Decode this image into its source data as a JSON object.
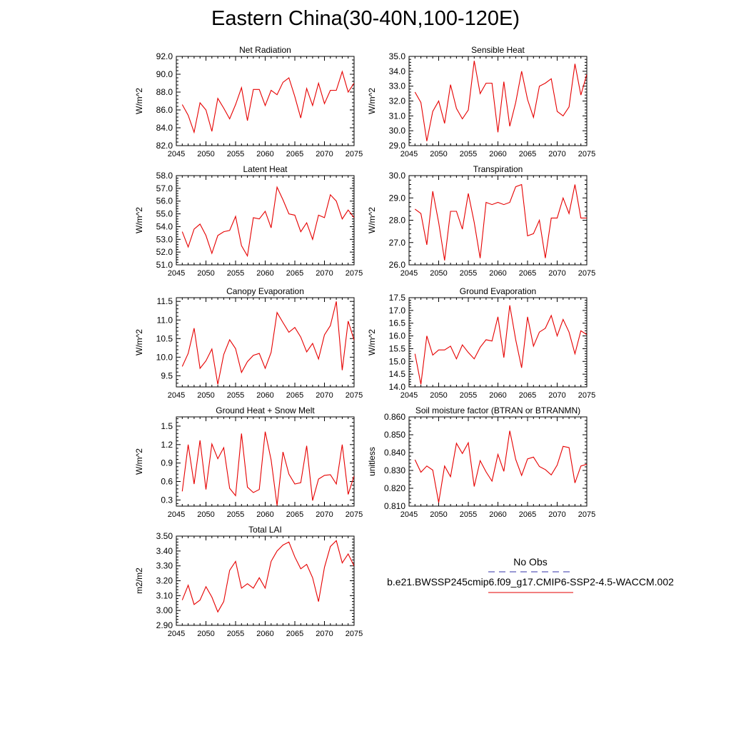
{
  "title": "Eastern China(30-40N,100-120E)",
  "colors": {
    "model_line": "#e60000",
    "obs_line": "#3333aa",
    "axis": "#000000"
  },
  "legend": {
    "obs_label": "No Obs",
    "model_label": "b.e21.BWSSP245cmip6.f09_g17.CMIP6-SSP2-4.5-WACCM.002"
  },
  "chart_data": [
    {
      "type": "line",
      "title": "Net Radiation",
      "ylabel": "W/m^2",
      "xlim": [
        2045,
        2075
      ],
      "ylim": [
        82.0,
        92.0
      ],
      "xticks": [
        2045,
        2050,
        2055,
        2060,
        2065,
        2070,
        2075
      ],
      "yticks": [
        "82.0",
        "84.0",
        "86.0",
        "88.0",
        "90.0",
        "92.0"
      ],
      "x": [
        2046,
        2047,
        2048,
        2049,
        2050,
        2051,
        2052,
        2053,
        2054,
        2055,
        2056,
        2057,
        2058,
        2059,
        2060,
        2061,
        2062,
        2063,
        2064,
        2065,
        2066,
        2067,
        2068,
        2069,
        2070,
        2071,
        2072,
        2073,
        2074,
        2075
      ],
      "values": [
        86.6,
        85.4,
        83.5,
        86.8,
        86.0,
        83.6,
        87.3,
        86.2,
        85.0,
        86.6,
        88.5,
        84.8,
        88.3,
        88.3,
        86.5,
        88.2,
        87.7,
        89.1,
        89.6,
        87.5,
        85.1,
        88.4,
        86.5,
        89.0,
        86.7,
        88.2,
        88.2,
        90.3,
        88.0,
        89.0
      ]
    },
    {
      "type": "line",
      "title": "Sensible Heat",
      "ylabel": "W/m^2",
      "xlim": [
        2045,
        2075
      ],
      "ylim": [
        29.0,
        35.0
      ],
      "xticks": [
        2045,
        2050,
        2055,
        2060,
        2065,
        2070,
        2075
      ],
      "yticks": [
        "29.0",
        "30.0",
        "31.0",
        "32.0",
        "33.0",
        "34.0",
        "35.0"
      ],
      "x": [
        2046,
        2047,
        2048,
        2049,
        2050,
        2051,
        2052,
        2053,
        2054,
        2055,
        2056,
        2057,
        2058,
        2059,
        2060,
        2061,
        2062,
        2063,
        2064,
        2065,
        2066,
        2067,
        2068,
        2069,
        2070,
        2071,
        2072,
        2073,
        2074,
        2075
      ],
      "values": [
        32.6,
        31.9,
        29.3,
        31.3,
        32.0,
        30.5,
        33.1,
        31.5,
        30.8,
        31.4,
        34.7,
        32.5,
        33.2,
        33.2,
        29.9,
        33.3,
        30.3,
        31.9,
        34.0,
        32.1,
        30.9,
        33.0,
        33.2,
        33.5,
        31.3,
        31.0,
        31.6,
        34.5,
        32.4,
        33.8
      ]
    },
    {
      "type": "line",
      "title": "Latent Heat",
      "ylabel": "W/m^2",
      "xlim": [
        2045,
        2075
      ],
      "ylim": [
        51.0,
        58.0
      ],
      "xticks": [
        2045,
        2050,
        2055,
        2060,
        2065,
        2070,
        2075
      ],
      "yticks": [
        "51.0",
        "52.0",
        "53.0",
        "54.0",
        "55.0",
        "56.0",
        "57.0",
        "58.0"
      ],
      "x": [
        2046,
        2047,
        2048,
        2049,
        2050,
        2051,
        2052,
        2053,
        2054,
        2055,
        2056,
        2057,
        2058,
        2059,
        2060,
        2061,
        2062,
        2063,
        2064,
        2065,
        2066,
        2067,
        2068,
        2069,
        2070,
        2071,
        2072,
        2073,
        2074,
        2075
      ],
      "values": [
        53.6,
        52.4,
        53.8,
        54.2,
        53.3,
        51.9,
        53.3,
        53.6,
        53.7,
        54.8,
        52.5,
        51.7,
        54.7,
        54.6,
        55.2,
        53.9,
        57.1,
        56.1,
        55.0,
        54.9,
        53.6,
        54.3,
        53.0,
        54.9,
        54.7,
        56.5,
        56.0,
        54.6,
        55.3,
        54.7
      ]
    },
    {
      "type": "line",
      "title": "Transpiration",
      "ylabel": "W/m^2",
      "xlim": [
        2045,
        2075
      ],
      "ylim": [
        26.0,
        30.0
      ],
      "xticks": [
        2045,
        2050,
        2055,
        2060,
        2065,
        2070,
        2075
      ],
      "yticks": [
        "26.0",
        "27.0",
        "28.0",
        "29.0",
        "30.0"
      ],
      "x": [
        2046,
        2047,
        2048,
        2049,
        2050,
        2051,
        2052,
        2053,
        2054,
        2055,
        2056,
        2057,
        2058,
        2059,
        2060,
        2061,
        2062,
        2063,
        2064,
        2065,
        2066,
        2067,
        2068,
        2069,
        2070,
        2071,
        2072,
        2073,
        2074,
        2075
      ],
      "values": [
        28.5,
        28.3,
        26.9,
        29.3,
        27.9,
        26.2,
        28.4,
        28.4,
        27.6,
        29.2,
        27.9,
        26.3,
        28.8,
        28.7,
        28.8,
        28.7,
        28.8,
        29.5,
        29.6,
        27.3,
        27.4,
        28.0,
        26.3,
        28.1,
        28.1,
        29.0,
        28.3,
        29.6,
        28.1,
        28.1
      ]
    },
    {
      "type": "line",
      "title": "Canopy Evaporation",
      "ylabel": "W/m^2",
      "xlim": [
        2045,
        2075
      ],
      "ylim": [
        9.2,
        11.6
      ],
      "xticks": [
        2045,
        2050,
        2055,
        2060,
        2065,
        2070,
        2075
      ],
      "yticks": [
        "9.5",
        "10.0",
        "10.5",
        "11.0",
        "11.5"
      ],
      "x": [
        2046,
        2047,
        2048,
        2049,
        2050,
        2051,
        2052,
        2053,
        2054,
        2055,
        2056,
        2057,
        2058,
        2059,
        2060,
        2061,
        2062,
        2063,
        2064,
        2065,
        2066,
        2067,
        2068,
        2069,
        2070,
        2071,
        2072,
        2073,
        2074,
        2075
      ],
      "values": [
        9.75,
        10.1,
        10.78,
        9.7,
        9.9,
        10.22,
        9.27,
        10.07,
        10.47,
        10.23,
        9.59,
        9.88,
        10.05,
        10.1,
        9.7,
        10.13,
        11.2,
        10.93,
        10.67,
        10.8,
        10.54,
        10.14,
        10.37,
        9.95,
        10.6,
        10.85,
        11.5,
        9.65,
        10.97,
        10.46
      ]
    },
    {
      "type": "line",
      "title": "Ground Evaporation",
      "ylabel": "W/m^2",
      "xlim": [
        2045,
        2075
      ],
      "ylim": [
        14.0,
        17.5
      ],
      "xticks": [
        2045,
        2050,
        2055,
        2060,
        2065,
        2070,
        2075
      ],
      "yticks": [
        "14.0",
        "14.5",
        "15.0",
        "15.5",
        "16.0",
        "16.5",
        "17.0",
        "17.5"
      ],
      "x": [
        2046,
        2047,
        2048,
        2049,
        2050,
        2051,
        2052,
        2053,
        2054,
        2055,
        2056,
        2057,
        2058,
        2059,
        2060,
        2061,
        2062,
        2063,
        2064,
        2065,
        2066,
        2067,
        2068,
        2069,
        2070,
        2071,
        2072,
        2073,
        2074,
        2075
      ],
      "values": [
        15.3,
        14.1,
        16.0,
        15.25,
        15.45,
        15.45,
        15.6,
        15.1,
        15.65,
        15.35,
        15.1,
        15.55,
        15.85,
        15.8,
        16.75,
        15.15,
        17.2,
        15.85,
        14.75,
        16.75,
        15.6,
        16.15,
        16.3,
        16.8,
        16.0,
        16.65,
        16.15,
        15.3,
        16.2,
        16.05
      ]
    },
    {
      "type": "line",
      "title": "Ground Heat + Snow Melt",
      "ylabel": "W/m^2",
      "xlim": [
        2045,
        2075
      ],
      "ylim": [
        0.2,
        1.65
      ],
      "xticks": [
        2045,
        2050,
        2055,
        2060,
        2065,
        2070,
        2075
      ],
      "yticks": [
        "0.3",
        "0.6",
        "0.9",
        "1.2",
        "1.5"
      ],
      "x": [
        2046,
        2047,
        2048,
        2049,
        2050,
        2051,
        2052,
        2053,
        2054,
        2055,
        2056,
        2057,
        2058,
        2059,
        2060,
        2061,
        2062,
        2063,
        2064,
        2065,
        2066,
        2067,
        2068,
        2069,
        2070,
        2071,
        2072,
        2073,
        2074,
        2075
      ],
      "values": [
        0.44,
        1.2,
        0.56,
        1.27,
        0.47,
        1.21,
        0.97,
        1.15,
        0.49,
        0.37,
        1.38,
        0.51,
        0.42,
        0.47,
        1.41,
        0.95,
        0.21,
        1.08,
        0.72,
        0.56,
        0.58,
        1.18,
        0.29,
        0.64,
        0.7,
        0.71,
        0.56,
        1.2,
        0.39,
        0.69
      ]
    },
    {
      "type": "line",
      "title": "Soil moisture factor (BTRAN or BTRANMN)",
      "ylabel": "unitless",
      "xlim": [
        2045,
        2075
      ],
      "ylim": [
        0.81,
        0.86
      ],
      "xticks": [
        2045,
        2050,
        2055,
        2060,
        2065,
        2070,
        2075
      ],
      "yticks": [
        "0.810",
        "0.820",
        "0.830",
        "0.840",
        "0.850",
        "0.860"
      ],
      "x": [
        2046,
        2047,
        2048,
        2049,
        2050,
        2051,
        2052,
        2053,
        2054,
        2055,
        2056,
        2057,
        2058,
        2059,
        2060,
        2061,
        2062,
        2063,
        2064,
        2065,
        2066,
        2067,
        2068,
        2069,
        2070,
        2071,
        2072,
        2073,
        2074,
        2075
      ],
      "values": [
        0.836,
        0.829,
        0.8325,
        0.8302,
        0.812,
        0.8325,
        0.8265,
        0.8452,
        0.8395,
        0.8455,
        0.821,
        0.8355,
        0.8292,
        0.824,
        0.839,
        0.8295,
        0.8522,
        0.8362,
        0.8272,
        0.8365,
        0.8375,
        0.8322,
        0.8305,
        0.8275,
        0.833,
        0.8435,
        0.8428,
        0.823,
        0.8325,
        0.8335
      ]
    },
    {
      "type": "line",
      "title": "Total LAI",
      "ylabel": "m2/m2",
      "xlim": [
        2045,
        2075
      ],
      "ylim": [
        2.9,
        3.5
      ],
      "xticks": [
        2045,
        2050,
        2055,
        2060,
        2065,
        2070,
        2075
      ],
      "yticks": [
        "2.90",
        "3.00",
        "3.10",
        "3.20",
        "3.30",
        "3.40",
        "3.50"
      ],
      "x": [
        2046,
        2047,
        2048,
        2049,
        2050,
        2051,
        2052,
        2053,
        2054,
        2055,
        2056,
        2057,
        2058,
        2059,
        2060,
        2061,
        2062,
        2063,
        2064,
        2065,
        2066,
        2067,
        2068,
        2069,
        2070,
        2071,
        2072,
        2073,
        2074,
        2075
      ],
      "values": [
        3.07,
        3.17,
        3.04,
        3.07,
        3.16,
        3.09,
        2.99,
        3.06,
        3.27,
        3.33,
        3.15,
        3.18,
        3.15,
        3.22,
        3.15,
        3.33,
        3.4,
        3.44,
        3.46,
        3.36,
        3.28,
        3.31,
        3.22,
        3.06,
        3.29,
        3.43,
        3.47,
        3.32,
        3.38,
        3.3
      ]
    }
  ]
}
